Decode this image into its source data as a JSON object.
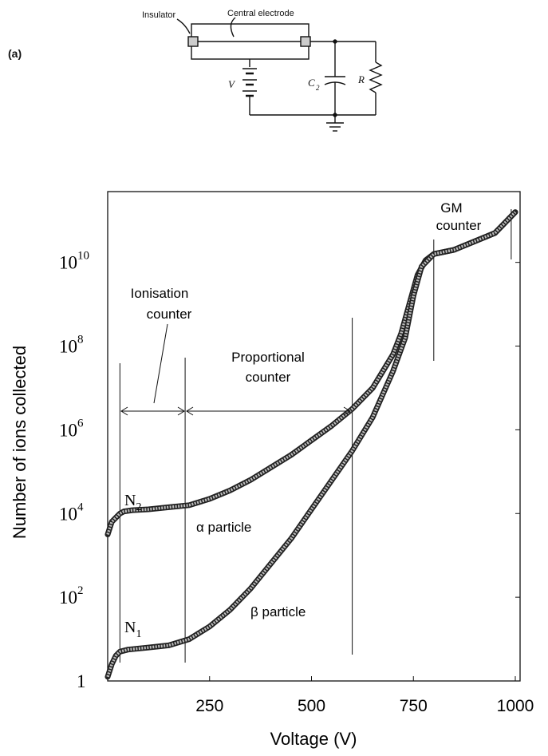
{
  "circuit": {
    "panel_label": "(a)",
    "insulator_label": "Insulator",
    "electrode_label": "Central electrode",
    "voltage_label": "V",
    "capacitor_label": "C",
    "capacitor_sub": "2",
    "resistor_label": "R"
  },
  "chart_data": {
    "type": "line",
    "xlabel": "Voltage (V)",
    "ylabel": "Number of ions collected",
    "x_ticks": [
      "250",
      "500",
      "750",
      "1000"
    ],
    "x_tick_values": [
      250,
      500,
      750,
      1000
    ],
    "xlim": [
      0,
      1000
    ],
    "y_scale": "log",
    "ylim_log10": [
      0,
      11.5
    ],
    "y_ticks": [
      {
        "exp": 0,
        "base": "1",
        "sup": ""
      },
      {
        "exp": 2,
        "base": "10",
        "sup": "2"
      },
      {
        "exp": 4,
        "base": "10",
        "sup": "4"
      },
      {
        "exp": 6,
        "base": "10",
        "sup": "6"
      },
      {
        "exp": 8,
        "base": "10",
        "sup": "8"
      },
      {
        "exp": 10,
        "base": "10",
        "sup": "10"
      }
    ],
    "grid": false,
    "series": [
      {
        "name": "α particle",
        "points_log10": [
          [
            0,
            3.5
          ],
          [
            10,
            3.8
          ],
          [
            20,
            3.9
          ],
          [
            30,
            4.0
          ],
          [
            40,
            4.05
          ],
          [
            60,
            4.08
          ],
          [
            100,
            4.1
          ],
          [
            150,
            4.15
          ],
          [
            200,
            4.2
          ],
          [
            250,
            4.35
          ],
          [
            300,
            4.55
          ],
          [
            350,
            4.8
          ],
          [
            400,
            5.1
          ],
          [
            450,
            5.4
          ],
          [
            500,
            5.75
          ],
          [
            550,
            6.1
          ],
          [
            600,
            6.5
          ],
          [
            650,
            7.0
          ],
          [
            700,
            7.8
          ],
          [
            720,
            8.3
          ],
          [
            740,
            9.0
          ],
          [
            760,
            9.7
          ],
          [
            780,
            10.05
          ],
          [
            800,
            10.2
          ],
          [
            850,
            10.3
          ],
          [
            900,
            10.5
          ],
          [
            950,
            10.7
          ],
          [
            1000,
            11.2
          ]
        ]
      },
      {
        "name": "β particle",
        "points_log10": [
          [
            0,
            0.1
          ],
          [
            10,
            0.4
          ],
          [
            20,
            0.6
          ],
          [
            30,
            0.7
          ],
          [
            50,
            0.75
          ],
          [
            100,
            0.8
          ],
          [
            150,
            0.85
          ],
          [
            200,
            1.0
          ],
          [
            250,
            1.3
          ],
          [
            300,
            1.7
          ],
          [
            350,
            2.2
          ],
          [
            400,
            2.8
          ],
          [
            450,
            3.4
          ],
          [
            500,
            4.1
          ],
          [
            550,
            4.8
          ],
          [
            600,
            5.5
          ],
          [
            650,
            6.3
          ],
          [
            700,
            7.4
          ],
          [
            730,
            8.2
          ],
          [
            750,
            9.2
          ],
          [
            770,
            9.9
          ],
          [
            800,
            10.2
          ],
          [
            850,
            10.3
          ],
          [
            900,
            10.5
          ],
          [
            950,
            10.7
          ],
          [
            1000,
            11.2
          ]
        ]
      }
    ],
    "curve_labels": {
      "n2": "N",
      "n2_sub": "2",
      "n1": "N",
      "n1_sub": "1"
    },
    "particle_labels": {
      "alpha": "α particle",
      "beta": "β particle"
    },
    "regions": {
      "ionisation_line1": "Ionisation",
      "ionisation_line2": "counter",
      "proportional_line1": "Proportional",
      "proportional_line2": "counter",
      "gm_line1": "GM",
      "gm_line2": "counter"
    },
    "region_boundaries": [
      30,
      190,
      600,
      800,
      990
    ]
  }
}
